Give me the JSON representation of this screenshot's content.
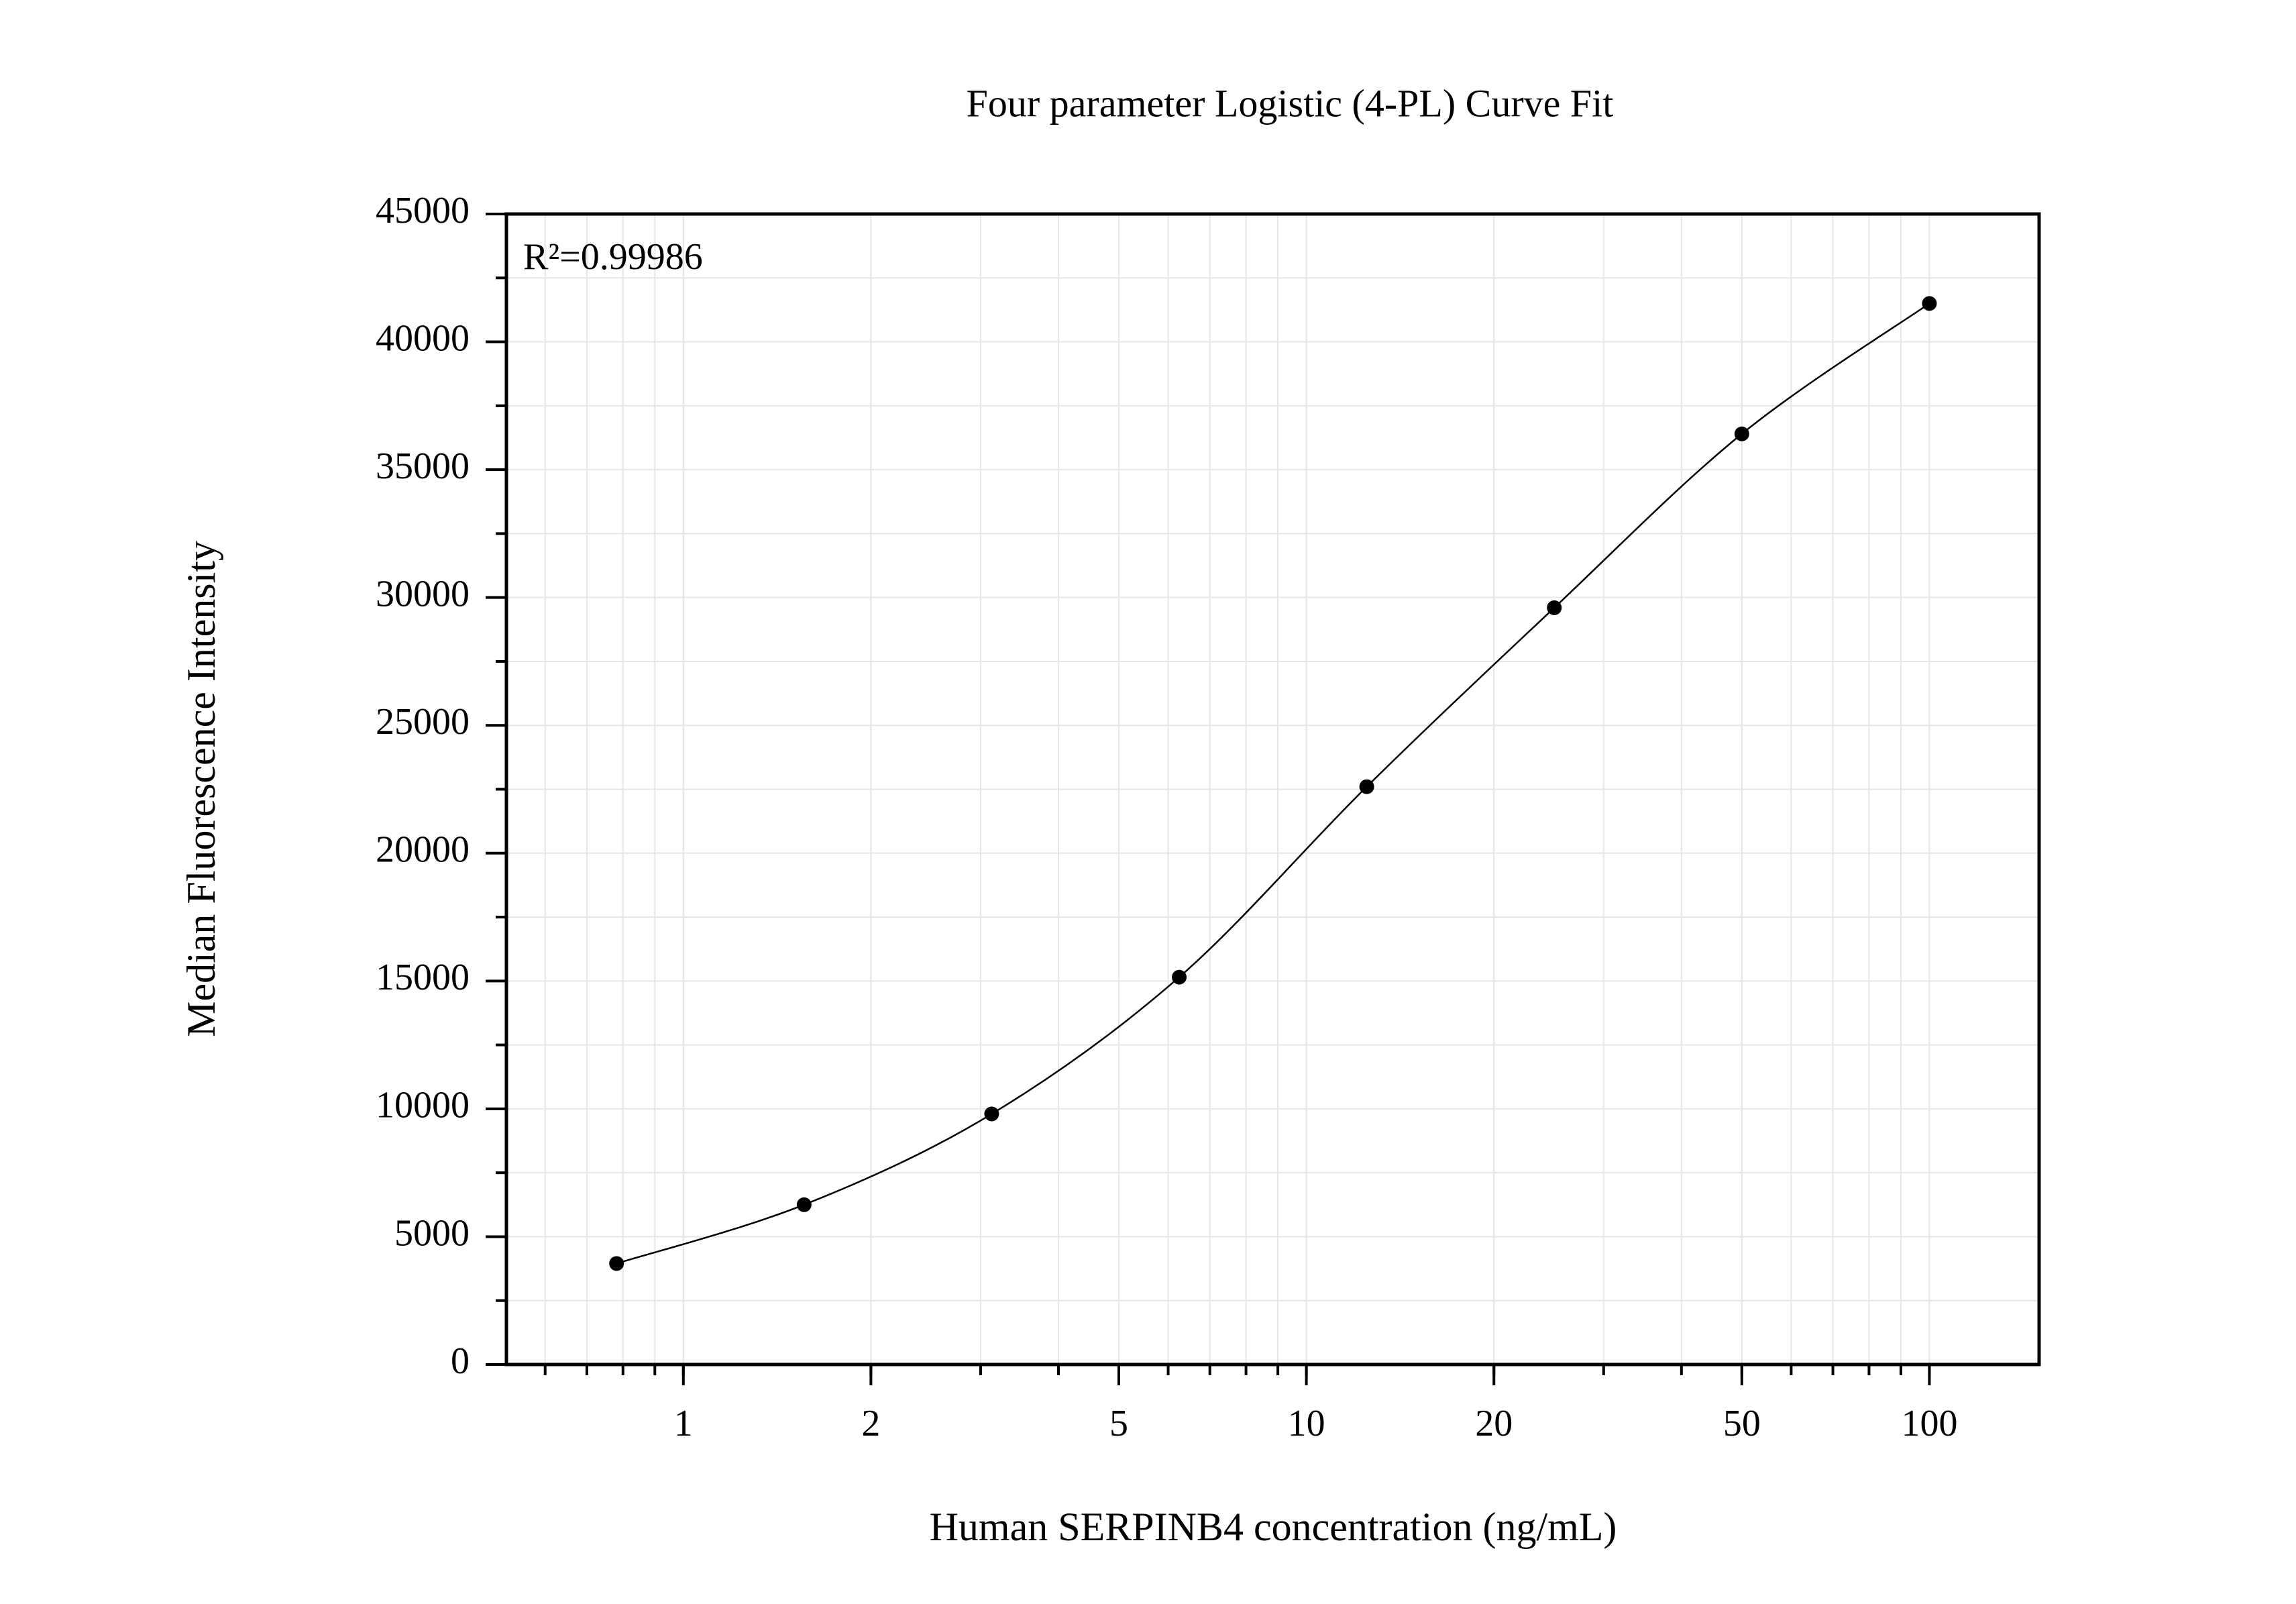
{
  "chart_data": {
    "type": "scatter",
    "title": "Four parameter Logistic (4-PL) Curve Fit",
    "x_label": "Human SERPINB4 concentration (ng/mL)",
    "y_label": "Median Fluorescence Intensity",
    "annotation": "R²=0.99986",
    "x": [
      0.78125,
      1.5625,
      3.125,
      6.25,
      12.5,
      25,
      50,
      100
    ],
    "values": [
      3950,
      6250,
      9800,
      15150,
      22600,
      29600,
      36400,
      41500
    ],
    "color": "#000000",
    "x_log": true,
    "grid": true,
    "xlim": [
      0.52,
      150
    ],
    "xticks": [
      1,
      2,
      5,
      10,
      20,
      50,
      100
    ],
    "ylim": [
      0,
      45000
    ],
    "yticks": [
      0,
      5000,
      10000,
      15000,
      20000,
      25000,
      30000,
      35000,
      40000,
      45000
    ]
  }
}
